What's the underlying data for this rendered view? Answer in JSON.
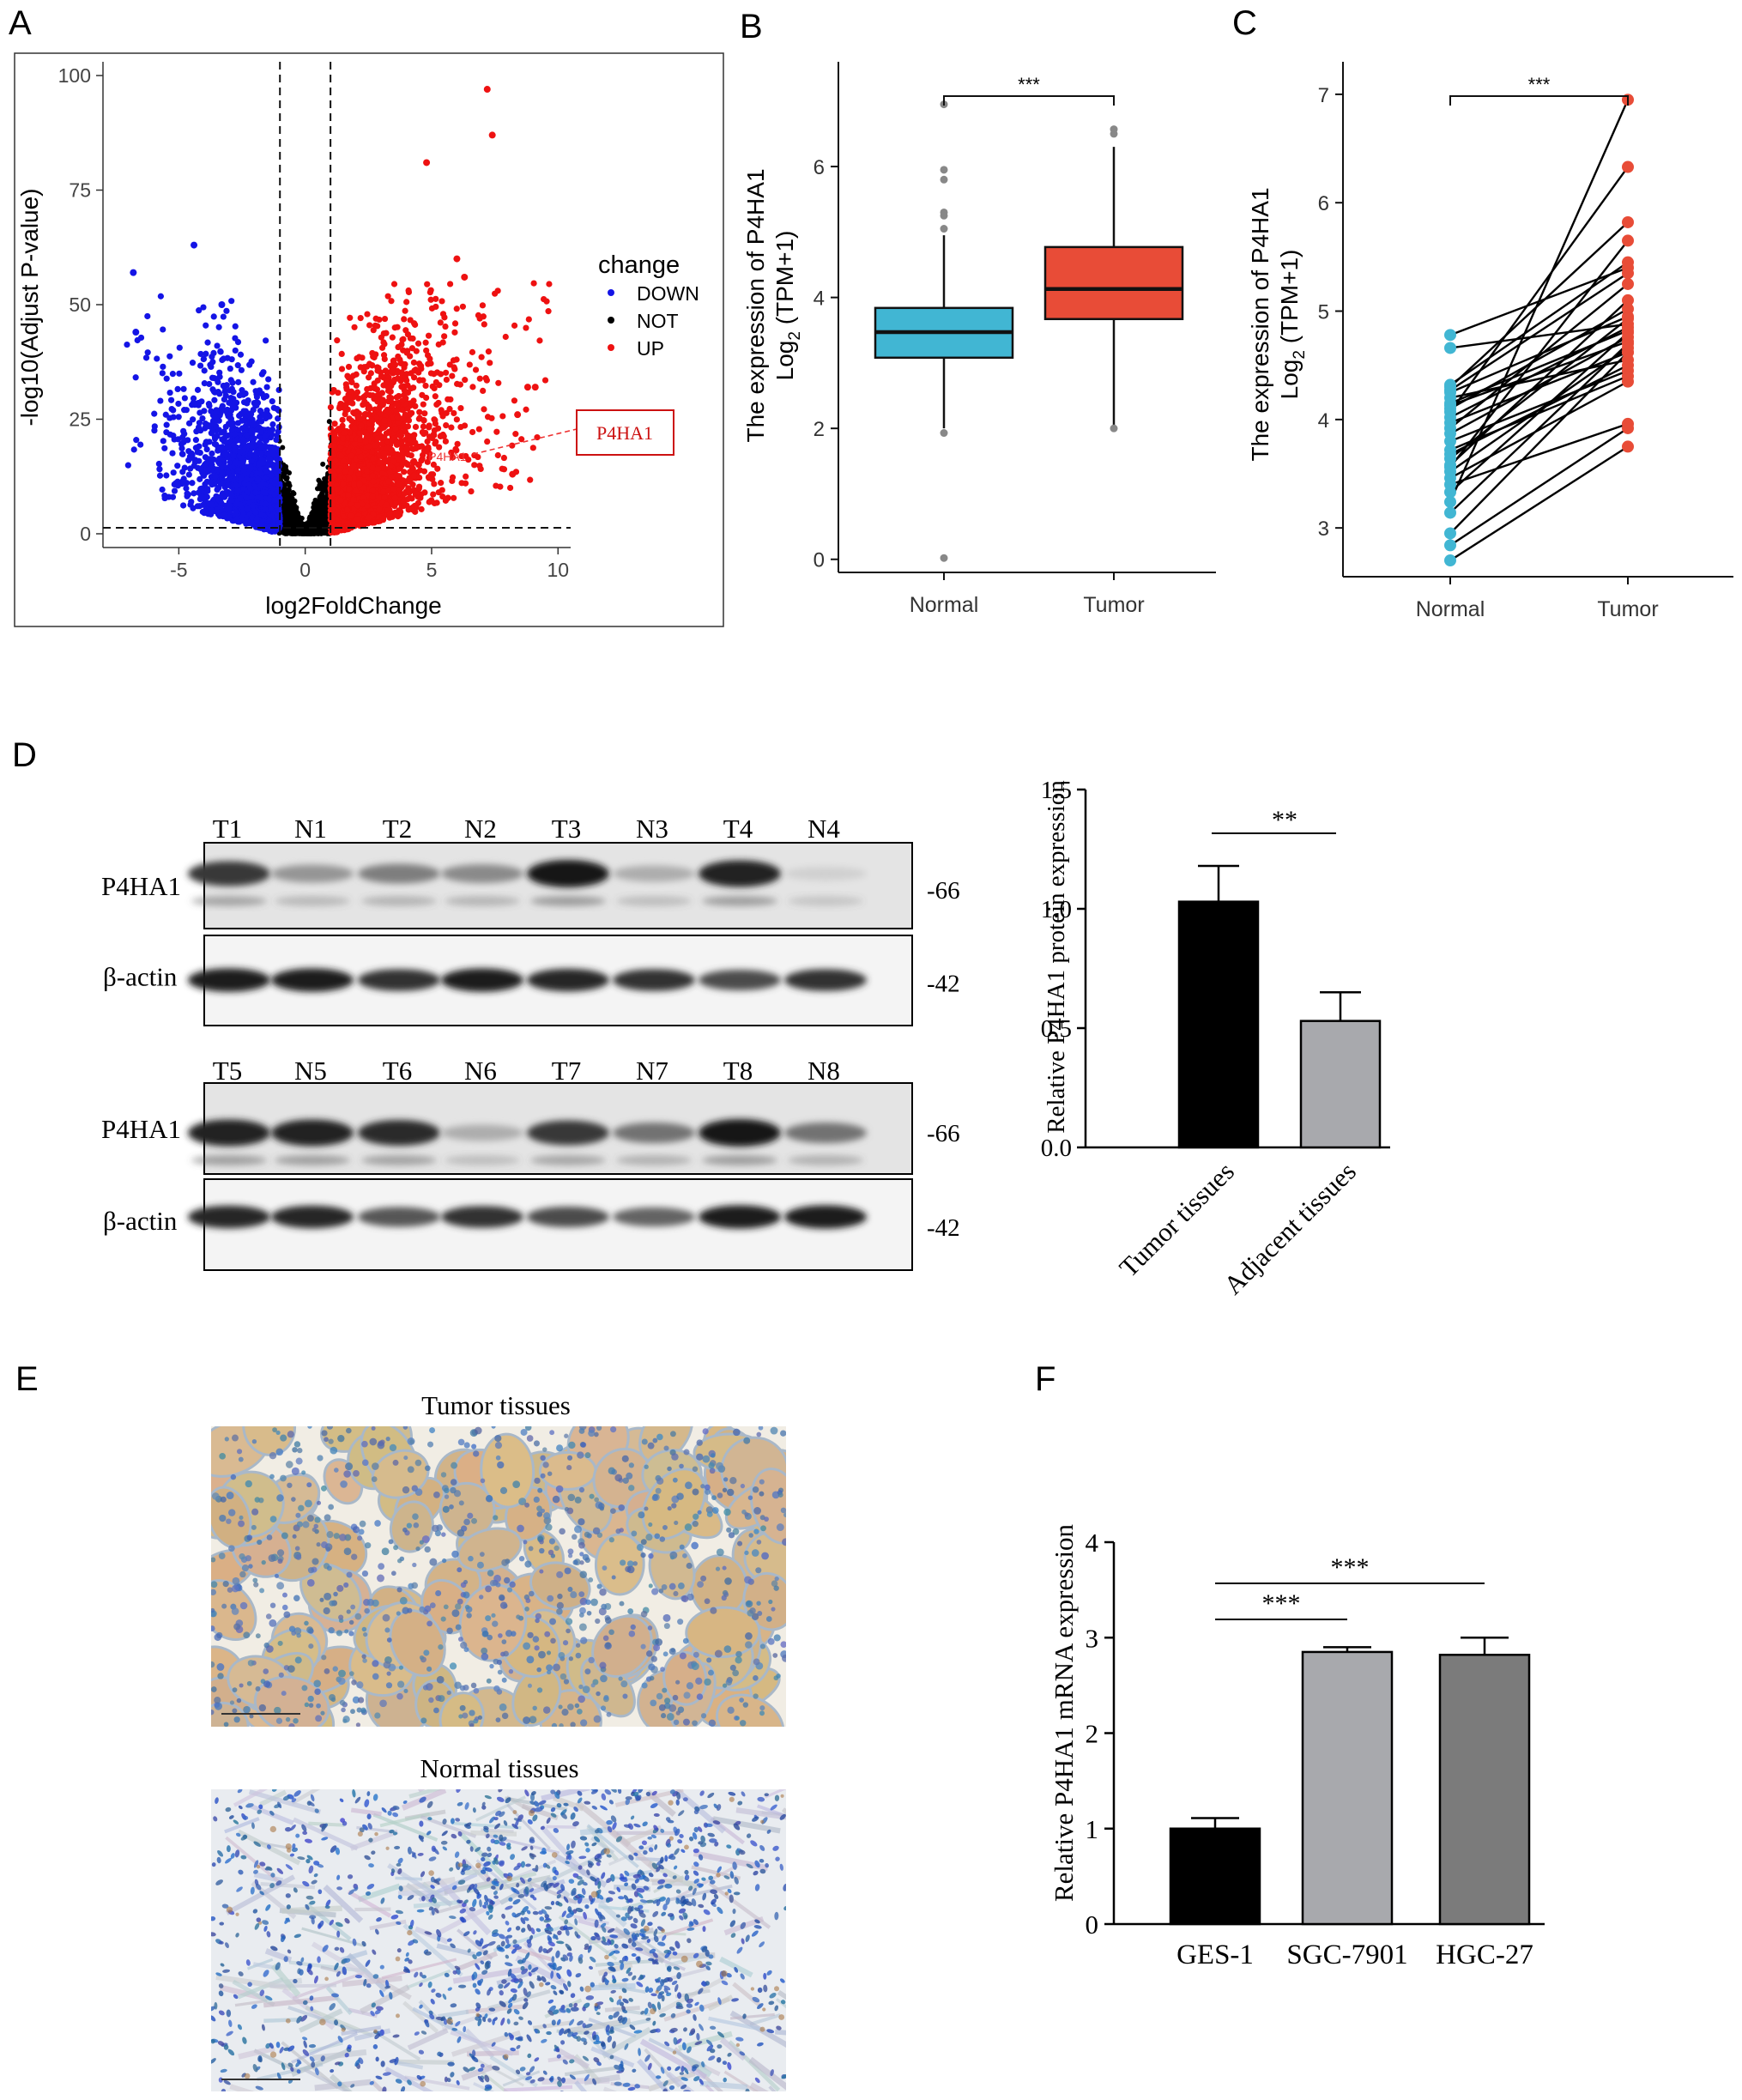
{
  "panels": {
    "A": "A",
    "B": "B",
    "C": "C",
    "D": "D",
    "E": "E",
    "F": "F"
  },
  "chart_data": [
    {
      "id": "A",
      "type": "scatter",
      "xlabel": "log2FoldChange",
      "ylabel": "-log10(Adjust P-value)",
      "xlim": [
        -8,
        10.5
      ],
      "ylim": [
        -3,
        103
      ],
      "xticks": [
        -5,
        0,
        5,
        10
      ],
      "yticks": [
        0,
        25,
        50,
        75,
        100
      ],
      "thresholds": {
        "x": [
          -1,
          1
        ],
        "y": [
          1.3
        ]
      },
      "legend": {
        "title": "change",
        "position": "right",
        "entries": [
          {
            "label": "DOWN",
            "color": "#1414e6"
          },
          {
            "label": "NOT",
            "color": "#000000"
          },
          {
            "label": "UP",
            "color": "#ee1111"
          }
        ]
      },
      "annotation": {
        "label": "P4HA1",
        "point_label": "P4HA1",
        "x": 4.6,
        "y": 17
      },
      "highlight_points": [
        {
          "x": 7.2,
          "y": 97,
          "group": "UP"
        },
        {
          "x": 7.4,
          "y": 87,
          "group": "UP"
        },
        {
          "x": 4.8,
          "y": 81,
          "group": "UP"
        },
        {
          "x": 6.0,
          "y": 60,
          "group": "UP"
        },
        {
          "x": 6.3,
          "y": 56,
          "group": "UP"
        },
        {
          "x": -4.4,
          "y": 63,
          "group": "DOWN"
        },
        {
          "x": -6.8,
          "y": 57,
          "group": "DOWN"
        },
        {
          "x": -6.7,
          "y": 44,
          "group": "DOWN"
        },
        {
          "x": -3.3,
          "y": 50,
          "group": "DOWN"
        },
        {
          "x": 9.1,
          "y": 32,
          "group": "UP"
        },
        {
          "x": 8.8,
          "y": 32,
          "group": "UP"
        },
        {
          "x": 8.4,
          "y": 26,
          "group": "UP"
        },
        {
          "x": 8.2,
          "y": 13,
          "group": "UP"
        }
      ]
    },
    {
      "id": "B",
      "type": "box",
      "ylabel_line1": "The expression of P4HA1",
      "ylabel_line2_main": "Log",
      "ylabel_line2_sub": "2",
      "ylabel_line2_rest": " (TPM+1)",
      "categories": [
        "Normal",
        "Tumor"
      ],
      "ylim": [
        -0.2,
        7.6
      ],
      "yticks": [
        0,
        2,
        4,
        6
      ],
      "significance": "***",
      "boxes": [
        {
          "name": "Normal",
          "color": "#41b6d3",
          "q1": 3.08,
          "median": 3.47,
          "q3": 3.84,
          "lower": 2.0,
          "upper": 4.95,
          "outliers": [
            5.05,
            5.25,
            5.3,
            5.8,
            5.95,
            6.95,
            1.93,
            0.02
          ]
        },
        {
          "name": "Tumor",
          "color": "#e84c37",
          "q1": 3.67,
          "median": 4.13,
          "q3": 4.77,
          "lower": 2.05,
          "upper": 6.3,
          "outliers": [
            6.5,
            6.57,
            2.0
          ]
        }
      ]
    },
    {
      "id": "C",
      "type": "paired-line",
      "ylabel_line1": "The expression of P4HA1",
      "ylabel_line2_main": "Log",
      "ylabel_line2_sub": "2",
      "ylabel_line2_rest": " (TPM+1)",
      "categories": [
        "Normal",
        "Tumor"
      ],
      "ylim": [
        2.55,
        7.3
      ],
      "yticks": [
        3,
        4,
        5,
        6,
        7
      ],
      "significance": "***",
      "colors": {
        "Normal": "#41b6d3",
        "Tumor": "#e84c37"
      },
      "pairs": [
        [
          4.78,
          5.4
        ],
        [
          4.66,
          4.88
        ],
        [
          4.3,
          5.82
        ],
        [
          4.27,
          5.35
        ],
        [
          4.25,
          4.95
        ],
        [
          4.2,
          4.55
        ],
        [
          4.13,
          4.72
        ],
        [
          4.1,
          5.02
        ],
        [
          4.07,
          6.33
        ],
        [
          4.02,
          4.85
        ],
        [
          3.97,
          4.62
        ],
        [
          3.92,
          5.25
        ],
        [
          3.87,
          4.76
        ],
        [
          3.8,
          4.45
        ],
        [
          3.72,
          4.4
        ],
        [
          3.64,
          4.93
        ],
        [
          3.58,
          5.1
        ],
        [
          3.52,
          4.66
        ],
        [
          3.46,
          4.35
        ],
        [
          3.4,
          3.96
        ],
        [
          3.33,
          4.8
        ],
        [
          3.24,
          6.95
        ],
        [
          3.14,
          4.7
        ],
        [
          2.95,
          4.62
        ],
        [
          2.84,
          3.92
        ],
        [
          2.7,
          3.75
        ],
        [
          4.32,
          5.45
        ],
        [
          3.68,
          4.5
        ],
        [
          3.56,
          5.65
        ],
        [
          4.15,
          4.82
        ]
      ]
    },
    {
      "id": "D-bar",
      "type": "bar",
      "ylabel": "Relative P4HA1 protein expression",
      "categories": [
        "Tumor tissues",
        "Adjacent tissues"
      ],
      "values": [
        1.03,
        0.53
      ],
      "errors": [
        0.15,
        0.12
      ],
      "colors": [
        "#000000",
        "#a8a9ad"
      ],
      "ylim": [
        0,
        1.5
      ],
      "yticks": [
        "0.0",
        "0.5",
        "1.0",
        "1.5"
      ],
      "significance": "**"
    },
    {
      "id": "F",
      "type": "bar",
      "ylabel": "Relative P4HA1 mRNA expression",
      "categories": [
        "GES-1",
        "SGC-7901",
        "HGC-27"
      ],
      "values": [
        1.0,
        2.85,
        2.82
      ],
      "errors": [
        0.11,
        0.05,
        0.18
      ],
      "colors": [
        "#000000",
        "#a8a9ad",
        "#7b7b7b"
      ],
      "ylim": [
        0,
        4
      ],
      "yticks": [
        0,
        1,
        2,
        3,
        4
      ],
      "significance": [
        {
          "label": "***",
          "from": 0,
          "to": 1
        },
        {
          "label": "***",
          "from": 0,
          "to": 2
        }
      ]
    }
  ],
  "western": {
    "blot1": {
      "lanes": [
        "T1",
        "N1",
        "T2",
        "N2",
        "T3",
        "N3",
        "T4",
        "N4"
      ],
      "target_label": "P4HA1",
      "loading_label": "β-actin",
      "target_kda": "-66",
      "loading_kda": "-42",
      "target_intensity": [
        0.85,
        0.45,
        0.55,
        0.5,
        1.0,
        0.35,
        0.95,
        0.2
      ],
      "loading_intensity": [
        0.95,
        0.95,
        0.85,
        0.95,
        0.9,
        0.85,
        0.75,
        0.85
      ]
    },
    "blot2": {
      "lanes": [
        "T5",
        "N5",
        "T6",
        "N6",
        "T7",
        "N7",
        "T8",
        "N8"
      ],
      "target_label": "P4HA1",
      "loading_label": "β-actin",
      "target_kda": "-66",
      "loading_kda": "-42",
      "target_intensity": [
        0.95,
        0.95,
        0.9,
        0.35,
        0.85,
        0.6,
        1.0,
        0.6
      ],
      "loading_intensity": [
        0.9,
        0.9,
        0.7,
        0.85,
        0.75,
        0.65,
        0.95,
        0.95
      ]
    }
  },
  "ihc": {
    "tumor_title": "Tumor tissues",
    "normal_title": "Normal tissues"
  }
}
